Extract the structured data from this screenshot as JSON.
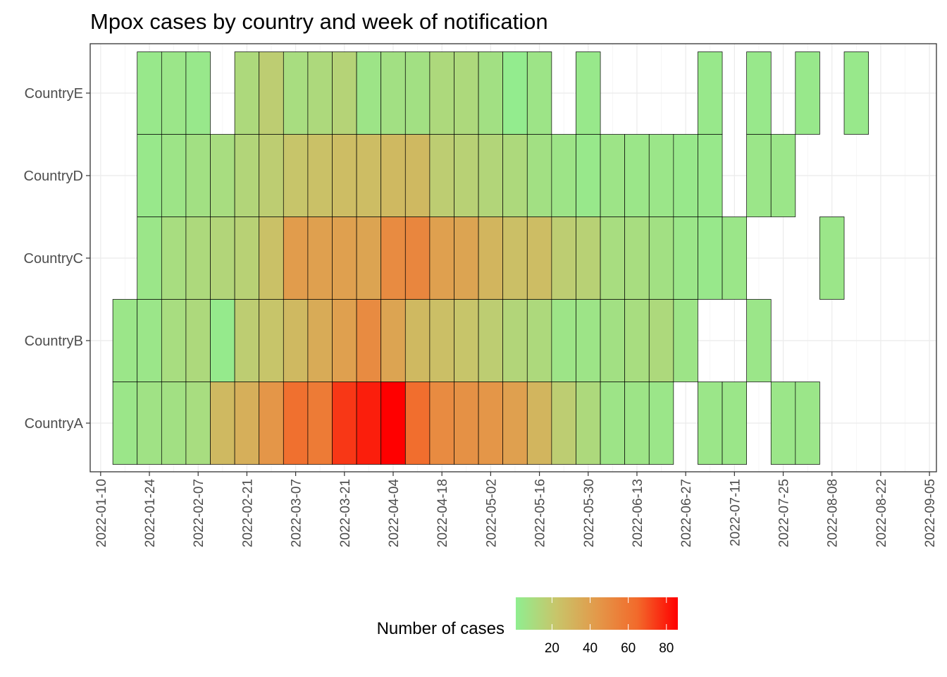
{
  "chart_data": {
    "type": "heatmap",
    "title": "Mpox cases by country and week of notification",
    "xlabel": "",
    "ylabel": "",
    "x_tick_labels": [
      "2022-01-10",
      "2022-01-24",
      "2022-02-07",
      "2022-02-21",
      "2022-03-07",
      "2022-03-21",
      "2022-04-04",
      "2022-04-18",
      "2022-05-02",
      "2022-05-16",
      "2022-05-30",
      "2022-06-13",
      "2022-06-27",
      "2022-07-11",
      "2022-07-25",
      "2022-08-08",
      "2022-08-22",
      "2022-09-05"
    ],
    "xlim": [
      "2022-01-07",
      "2022-09-07"
    ],
    "rows": [
      "CountryA",
      "CountryB",
      "CountryC",
      "CountryD",
      "CountryE"
    ],
    "weeks": [
      "2022-01-17",
      "2022-01-24",
      "2022-01-31",
      "2022-02-07",
      "2022-02-14",
      "2022-02-21",
      "2022-02-28",
      "2022-03-07",
      "2022-03-14",
      "2022-03-21",
      "2022-03-28",
      "2022-04-04",
      "2022-04-11",
      "2022-04-18",
      "2022-04-25",
      "2022-05-02",
      "2022-05-09",
      "2022-05-16",
      "2022-05-23",
      "2022-05-30",
      "2022-06-06",
      "2022-06-13",
      "2022-06-20",
      "2022-06-27",
      "2022-07-04",
      "2022-07-11",
      "2022-07-18",
      "2022-07-25",
      "2022-08-01",
      "2022-08-08",
      "2022-08-15",
      "2022-08-22"
    ],
    "values": {
      "CountryA": [
        5,
        7,
        8,
        10,
        28,
        33,
        45,
        62,
        57,
        75,
        80,
        86,
        63,
        50,
        47,
        45,
        40,
        30,
        18,
        12,
        6,
        6,
        5,
        null,
        5,
        5,
        null,
        5,
        5,
        null,
        null,
        null
      ],
      "CountryB": [
        5,
        5,
        10,
        12,
        3,
        18,
        22,
        28,
        35,
        40,
        50,
        38,
        28,
        25,
        22,
        18,
        14,
        12,
        6,
        6,
        8,
        10,
        12,
        6,
        null,
        null,
        5,
        null,
        null,
        null,
        null,
        null
      ],
      "CountryC": [
        null,
        5,
        10,
        12,
        14,
        16,
        24,
        42,
        40,
        40,
        38,
        50,
        52,
        40,
        38,
        30,
        25,
        26,
        18,
        16,
        10,
        10,
        8,
        5,
        4,
        5,
        null,
        null,
        null,
        5,
        null,
        null
      ],
      "CountryD": [
        null,
        4,
        6,
        8,
        10,
        14,
        18,
        22,
        24,
        26,
        26,
        28,
        28,
        18,
        16,
        14,
        12,
        8,
        6,
        4,
        6,
        5,
        5,
        4,
        4,
        null,
        5,
        5,
        null,
        null,
        null,
        null
      ],
      "CountryE": [
        null,
        4,
        5,
        4,
        null,
        12,
        18,
        10,
        12,
        15,
        6,
        8,
        8,
        12,
        12,
        8,
        2,
        6,
        null,
        4,
        null,
        null,
        null,
        null,
        4,
        null,
        4,
        null,
        4,
        null,
        4,
        null
      ]
    },
    "colorbar": {
      "title": "Number of cases",
      "min": 1,
      "max": 86,
      "ticks": [
        20,
        40,
        60,
        80
      ],
      "colors": [
        "#90ee90",
        "#c8c56a",
        "#e3994a",
        "#f26a2b",
        "#ff0000"
      ]
    },
    "grid": true,
    "legend_position": "bottom"
  }
}
